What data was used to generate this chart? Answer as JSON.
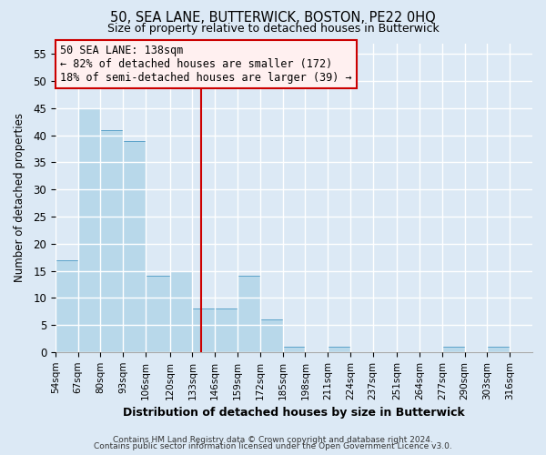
{
  "title": "50, SEA LANE, BUTTERWICK, BOSTON, PE22 0HQ",
  "subtitle": "Size of property relative to detached houses in Butterwick",
  "xlabel": "Distribution of detached houses by size in Butterwick",
  "ylabel": "Number of detached properties",
  "bin_labels": [
    "54sqm",
    "67sqm",
    "80sqm",
    "93sqm",
    "106sqm",
    "120sqm",
    "133sqm",
    "146sqm",
    "159sqm",
    "172sqm",
    "185sqm",
    "198sqm",
    "211sqm",
    "224sqm",
    "237sqm",
    "251sqm",
    "264sqm",
    "277sqm",
    "290sqm",
    "303sqm",
    "316sqm"
  ],
  "bar_values": [
    17,
    45,
    41,
    39,
    14,
    15,
    8,
    8,
    14,
    6,
    1,
    0,
    1,
    0,
    0,
    0,
    0,
    1,
    0,
    1,
    0
  ],
  "bar_color": "#b8d8ea",
  "bar_edge_color": "#5ba3c9",
  "ylim": [
    0,
    57
  ],
  "yticks": [
    0,
    5,
    10,
    15,
    20,
    25,
    30,
    35,
    40,
    45,
    50,
    55
  ],
  "property_size": 138,
  "vline_color": "#cc0000",
  "annotation_title": "50 SEA LANE: 138sqm",
  "annotation_line1": "← 82% of detached houses are smaller (172)",
  "annotation_line2": "18% of semi-detached houses are larger (39) →",
  "annotation_box_facecolor": "#fff0f0",
  "annotation_box_edge": "#cc0000",
  "footer_line1": "Contains HM Land Registry data © Crown copyright and database right 2024.",
  "footer_line2": "Contains public sector information licensed under the Open Government Licence v3.0.",
  "bg_color": "#dce9f5",
  "plot_bg_color": "#dce9f5",
  "grid_color": "#ffffff",
  "bin_edges": [
    54,
    67,
    80,
    93,
    106,
    120,
    133,
    146,
    159,
    172,
    185,
    198,
    211,
    224,
    237,
    251,
    264,
    277,
    290,
    303,
    316,
    329
  ]
}
